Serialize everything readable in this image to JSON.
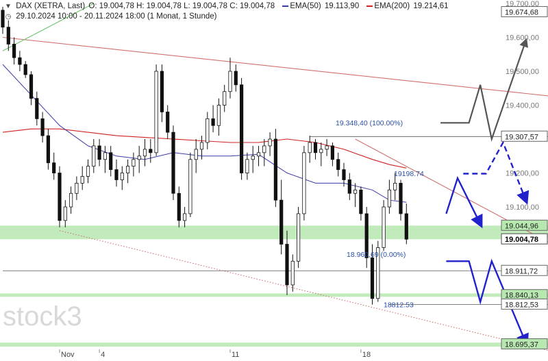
{
  "header": {
    "symbol_line": "DAX (XETRA, Last)",
    "ohlc": "O: 19.004,78   H: 19.004,78   L: 19.004,78   C: 19.004,78",
    "ema50": "EMA(50)",
    "ema50_value": "19.113,90",
    "ema200": "EMA(200)",
    "ema200_value": "19.214,61",
    "range_line": "29.10.2024 10:00 - 20.11.2024 18:00   (1 Monat, 1 Stunde)"
  },
  "watermark": "stock3",
  "colors": {
    "ema50": "#3a3aa8",
    "ema200": "#d02020",
    "candle": "#111111",
    "trendline": "#d07070",
    "zone": "#b7e8b0",
    "arrow": "#2222cc",
    "fib": "#2a4fa8",
    "axis_text": "#333333"
  },
  "chart_data": {
    "type": "candlestick",
    "title": "DAX (XETRA, Last)",
    "interval": "1 Stunde",
    "period": "29.10.2024 10:00 - 20.11.2024 18:00",
    "y_range": [
      18680,
      19700
    ],
    "y_ticks": [
      {
        "value": 19700,
        "label": "19.700,00"
      },
      {
        "value": 19600,
        "label": "19.600,00"
      },
      {
        "value": 19500,
        "label": "19.500,00"
      },
      {
        "value": 19400,
        "label": "19.400,00"
      },
      {
        "value": 19200,
        "label": "19.200,00"
      },
      {
        "value": 19100,
        "label": "19.100,00"
      }
    ],
    "level_labels": [
      {
        "value": 19674.68,
        "label": "19.674,68",
        "style": "box"
      },
      {
        "value": 19307.57,
        "label": "19.307,57",
        "style": "box"
      },
      {
        "value": 19044.96,
        "label": "19.044,96",
        "style": "zone"
      },
      {
        "value": 19004.78,
        "label": "19.004,78",
        "style": "price"
      },
      {
        "value": 18911.72,
        "label": "18.911,72",
        "style": "box"
      },
      {
        "value": 18840.13,
        "label": "18.840,13",
        "style": "zone"
      },
      {
        "value": 18812.53,
        "label": "18.812,53",
        "style": "box"
      },
      {
        "value": 18695.37,
        "label": "18.695,37",
        "style": "zone"
      }
    ],
    "x_ticks": [
      {
        "bar": 10,
        "label": "Nov"
      },
      {
        "bar": 17,
        "label": "4"
      },
      {
        "bar": 40,
        "label": "11"
      },
      {
        "bar": 63,
        "label": "18"
      }
    ],
    "zones": [
      {
        "from": 19004.78,
        "to": 19044.96
      },
      {
        "from": 18835,
        "to": 18845
      },
      {
        "from": 18688,
        "to": 18700
      }
    ],
    "hlines": [
      {
        "value": 19307.57,
        "from_bar": 54
      },
      {
        "value": 18911.72,
        "from_bar": 0
      },
      {
        "value": 18812.53,
        "from_bar": 68
      }
    ],
    "fib_labels": [
      {
        "text": "19.348,40 (100.00%)",
        "value": 19348.4
      },
      {
        "text": "18.960,69 (0.00%)",
        "value": 18960.69
      },
      {
        "text": "18812.53",
        "value": 18812.53
      },
      {
        "text": "19198.74",
        "value": 19198.74
      }
    ],
    "scenario_paths": [
      {
        "style": "solid-thin",
        "points": [
          [
            77,
            19348
          ],
          [
            82,
            19348
          ],
          [
            84,
            19460
          ],
          [
            86,
            19300
          ],
          [
            92,
            19590
          ]
        ]
      },
      {
        "style": "dashed",
        "points": [
          [
            81,
            19198
          ],
          [
            85,
            19198
          ],
          [
            88,
            19290
          ],
          [
            92,
            19120
          ]
        ]
      },
      {
        "style": "solid",
        "points": [
          [
            78,
            19080
          ],
          [
            80,
            19185
          ],
          [
            84,
            19050
          ]
        ]
      },
      {
        "style": "solid",
        "points": [
          [
            78,
            18940
          ],
          [
            82,
            18940
          ],
          [
            84,
            18820
          ],
          [
            86,
            18940
          ],
          [
            92,
            18700
          ]
        ]
      }
    ],
    "candles": [
      [
        19680,
        19690,
        19610,
        19630
      ],
      [
        19630,
        19650,
        19560,
        19580
      ],
      [
        19580,
        19600,
        19520,
        19540
      ],
      [
        19540,
        19560,
        19500,
        19520
      ],
      [
        19520,
        19530,
        19480,
        19490
      ],
      [
        19490,
        19500,
        19400,
        19420
      ],
      [
        19420,
        19440,
        19340,
        19360
      ],
      [
        19360,
        19380,
        19290,
        19310
      ],
      [
        19310,
        19330,
        19210,
        19230
      ],
      [
        19230,
        19260,
        19180,
        19200
      ],
      [
        19200,
        19220,
        19040,
        19060
      ],
      [
        19060,
        19120,
        19040,
        19100
      ],
      [
        19100,
        19160,
        19080,
        19140
      ],
      [
        19140,
        19190,
        19120,
        19170
      ],
      [
        19170,
        19220,
        19150,
        19190
      ],
      [
        19190,
        19240,
        19170,
        19220
      ],
      [
        19220,
        19300,
        19200,
        19280
      ],
      [
        19280,
        19300,
        19220,
        19240
      ],
      [
        19240,
        19280,
        19200,
        19260
      ],
      [
        19260,
        19280,
        19190,
        19210
      ],
      [
        19210,
        19240,
        19160,
        19180
      ],
      [
        19180,
        19220,
        19150,
        19200
      ],
      [
        19200,
        19240,
        19170,
        19220
      ],
      [
        19220,
        19260,
        19190,
        19240
      ],
      [
        19240,
        19280,
        19200,
        19250
      ],
      [
        19250,
        19300,
        19220,
        19270
      ],
      [
        19270,
        19300,
        19230,
        19260
      ],
      [
        19260,
        19520,
        19250,
        19500
      ],
      [
        19500,
        19520,
        19350,
        19380
      ],
      [
        19380,
        19400,
        19300,
        19320
      ],
      [
        19320,
        19340,
        19120,
        19140
      ],
      [
        19140,
        19160,
        19040,
        19060
      ],
      [
        19060,
        19100,
        19040,
        19080
      ],
      [
        19080,
        19260,
        19070,
        19240
      ],
      [
        19240,
        19300,
        19200,
        19270
      ],
      [
        19270,
        19310,
        19240,
        19290
      ],
      [
        19290,
        19380,
        19270,
        19360
      ],
      [
        19360,
        19400,
        19320,
        19340
      ],
      [
        19340,
        19420,
        19310,
        19400
      ],
      [
        19400,
        19460,
        19380,
        19440
      ],
      [
        19440,
        19540,
        19420,
        19500
      ],
      [
        19500,
        19520,
        19440,
        19460
      ],
      [
        19460,
        19480,
        19180,
        19200
      ],
      [
        19200,
        19260,
        19180,
        19240
      ],
      [
        19240,
        19280,
        19200,
        19250
      ],
      [
        19250,
        19280,
        19220,
        19260
      ],
      [
        19260,
        19300,
        19220,
        19280
      ],
      [
        19280,
        19320,
        19250,
        19300
      ],
      [
        19300,
        19330,
        19100,
        19120
      ],
      [
        19120,
        19180,
        18960,
        18990
      ],
      [
        18990,
        19030,
        18840,
        18870
      ],
      [
        18870,
        18960,
        18850,
        18940
      ],
      [
        18940,
        19100,
        18920,
        19080
      ],
      [
        19080,
        19280,
        19060,
        19260
      ],
      [
        19260,
        19310,
        19230,
        19290
      ],
      [
        19290,
        19300,
        19240,
        19260
      ],
      [
        19260,
        19290,
        19220,
        19270
      ],
      [
        19270,
        19300,
        19250,
        19280
      ],
      [
        19280,
        19290,
        19220,
        19240
      ],
      [
        19240,
        19260,
        19190,
        19210
      ],
      [
        19210,
        19230,
        19160,
        19180
      ],
      [
        19180,
        19200,
        19120,
        19140
      ],
      [
        19140,
        19170,
        19100,
        19150
      ],
      [
        19150,
        19160,
        19060,
        19080
      ],
      [
        19080,
        19100,
        18920,
        18950
      ],
      [
        18950,
        18990,
        18812,
        18830
      ],
      [
        18830,
        19000,
        18820,
        18980
      ],
      [
        18980,
        19120,
        18970,
        19100
      ],
      [
        19100,
        19180,
        19080,
        19150
      ],
      [
        19150,
        19200,
        19120,
        19170
      ],
      [
        19170,
        19180,
        19060,
        19080
      ],
      [
        19080,
        19110,
        18990,
        19004.78
      ]
    ],
    "ema50": [
      [
        0,
        19520
      ],
      [
        5,
        19430
      ],
      [
        10,
        19340
      ],
      [
        15,
        19280
      ],
      [
        20,
        19250
      ],
      [
        25,
        19240
      ],
      [
        30,
        19260
      ],
      [
        35,
        19250
      ],
      [
        40,
        19250
      ],
      [
        45,
        19255
      ],
      [
        50,
        19200
      ],
      [
        55,
        19170
      ],
      [
        60,
        19170
      ],
      [
        65,
        19150
      ],
      [
        68,
        19120
      ],
      [
        71,
        19113.9
      ]
    ],
    "ema200": [
      [
        0,
        19320
      ],
      [
        5,
        19330
      ],
      [
        10,
        19330
      ],
      [
        15,
        19320
      ],
      [
        20,
        19310
      ],
      [
        25,
        19305
      ],
      [
        30,
        19300
      ],
      [
        35,
        19295
      ],
      [
        40,
        19290
      ],
      [
        45,
        19290
      ],
      [
        50,
        19300
      ],
      [
        55,
        19290
      ],
      [
        60,
        19270
      ],
      [
        65,
        19240
      ],
      [
        68,
        19225
      ],
      [
        71,
        19214.61
      ]
    ],
    "trendlines": [
      {
        "style": "solid-thin",
        "color": "trendline",
        "points": [
          [
            0,
            19600
          ],
          [
            100,
            19420
          ]
        ]
      },
      {
        "style": "solid-thin",
        "color": "trendline",
        "points": [
          [
            62,
            19300
          ],
          [
            100,
            18960
          ]
        ]
      },
      {
        "style": "dotted",
        "color": "trendline",
        "points": [
          [
            10,
            19030
          ],
          [
            100,
            18660
          ]
        ]
      },
      {
        "style": "solid-thin",
        "color": "green",
        "points": [
          [
            0,
            19560
          ],
          [
            16,
            19700
          ]
        ]
      }
    ]
  }
}
